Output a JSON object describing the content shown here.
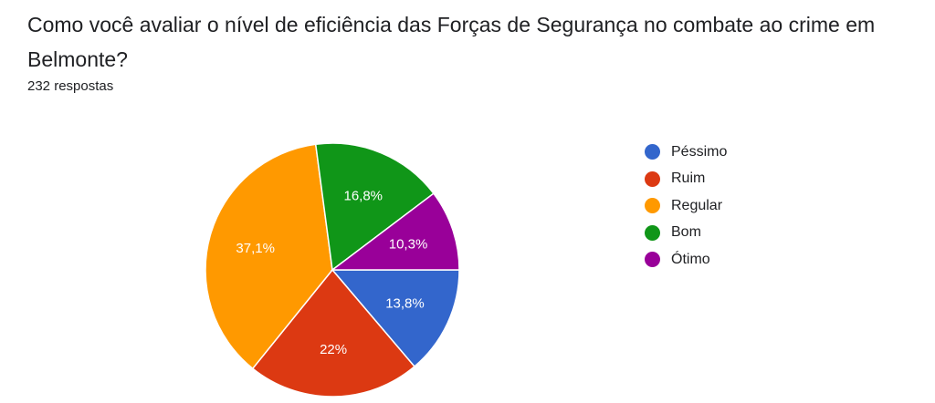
{
  "question": "Como você avaliar o nível de eficiência das Forças de Segurança no combate ao crime em Belmonte?",
  "response_count": "232 respostas",
  "chart_data": {
    "type": "pie",
    "title": "",
    "categories": [
      "Péssimo",
      "Ruim",
      "Regular",
      "Bom",
      "Ótimo"
    ],
    "values": [
      13.8,
      22.0,
      37.1,
      16.8,
      10.3
    ],
    "value_labels": [
      "13,8%",
      "22%",
      "37,1%",
      "16,8%",
      "10,3%"
    ],
    "colors": [
      "#3366cc",
      "#dc3912",
      "#ff9900",
      "#109618",
      "#990099"
    ],
    "legend_position": "right",
    "start_angle": "east",
    "direction": "clockwise"
  }
}
